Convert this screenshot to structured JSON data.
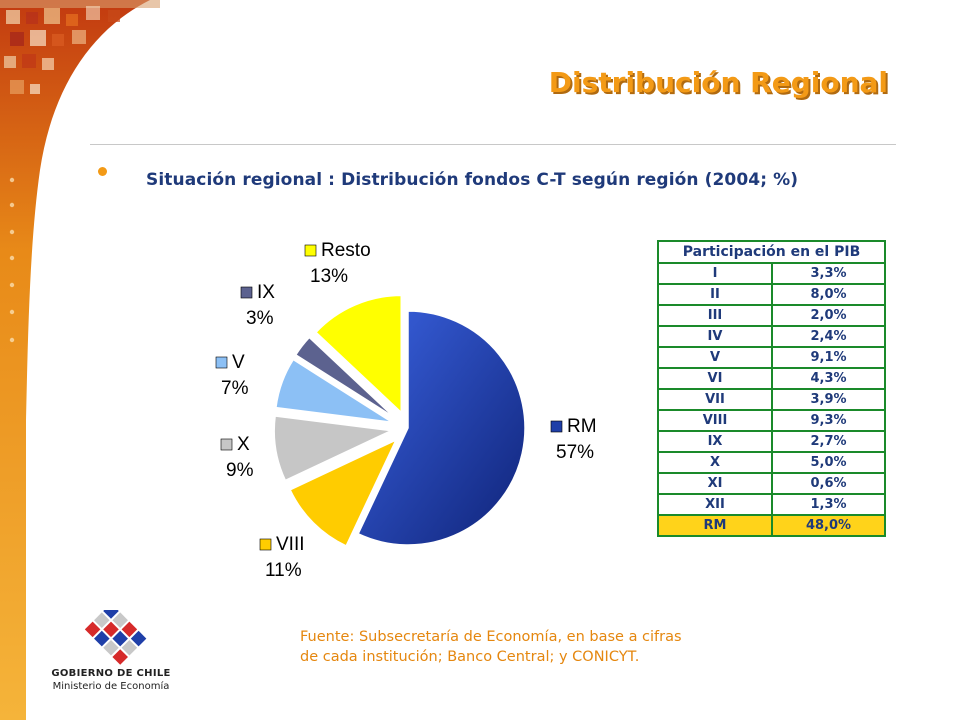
{
  "slide": {
    "title": "Distribución Regional",
    "subtitle": "Situación regional : Distribución fondos C-T según región (2004; %)",
    "source_line1": "Fuente: Subsecretaría de Economía, en base a cifras",
    "source_line2": "de cada institución; Banco Central; y CONICYT.",
    "logo_line1": "GOBIERNO DE CHILE",
    "logo_line2": "Ministerio de Economía",
    "colors": {
      "title": "#f39a16",
      "subtitle": "#1f3a7a",
      "source": "#e5870f",
      "table_border": "#1a8a2a",
      "table_highlight": "#ffd31a"
    }
  },
  "chart_data": [
    {
      "type": "pie",
      "slices": [
        {
          "label": "RM",
          "value": 57,
          "value_label": "57%",
          "color": "#1f3fa8",
          "exploded": false
        },
        {
          "label": "VIII",
          "value": 11,
          "value_label": "11%",
          "color": "#ffcc00",
          "exploded": true
        },
        {
          "label": "X",
          "value": 9,
          "value_label": "9%",
          "color": "#c6c6c6",
          "exploded": true
        },
        {
          "label": "V",
          "value": 7,
          "value_label": "7%",
          "color": "#8cc0f5",
          "exploded": true
        },
        {
          "label": "IX",
          "value": 3,
          "value_label": "3%",
          "color": "#5c628f",
          "exploded": true
        },
        {
          "label": "Resto",
          "value": 13,
          "value_label": "13%",
          "color": "#ffff00",
          "exploded": true
        }
      ]
    },
    {
      "type": "table",
      "title": "Participación en el PIB",
      "rows": [
        {
          "region": "I",
          "value": "3,3%"
        },
        {
          "region": "II",
          "value": "8,0%"
        },
        {
          "region": "III",
          "value": "2,0%"
        },
        {
          "region": "IV",
          "value": "2,4%"
        },
        {
          "region": "V",
          "value": "9,1%"
        },
        {
          "region": "VI",
          "value": "4,3%"
        },
        {
          "region": "VII",
          "value": "3,9%"
        },
        {
          "region": "VIII",
          "value": "9,3%"
        },
        {
          "region": "IX",
          "value": "2,7%"
        },
        {
          "region": "X",
          "value": "5,0%"
        },
        {
          "region": "XI",
          "value": "0,6%"
        },
        {
          "region": "XII",
          "value": "1,3%"
        },
        {
          "region": "RM",
          "value": "48,0%",
          "highlight": true
        }
      ]
    }
  ]
}
